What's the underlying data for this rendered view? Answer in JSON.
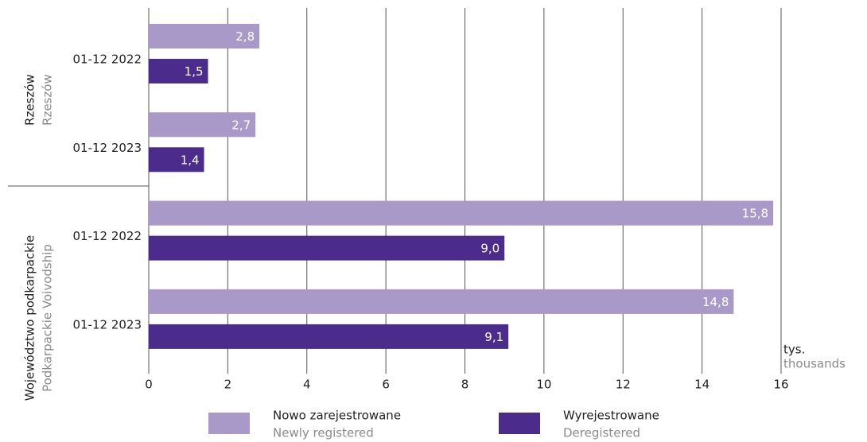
{
  "chart_data": {
    "type": "bar",
    "orientation": "horizontal",
    "groups": [
      {
        "label": "Rzeszów",
        "label_en": "Rzeszów"
      },
      {
        "label": "Województwo podkarpackie",
        "label_en": "Podkarpackie Voivodship"
      }
    ],
    "categories": [
      "01-12 2022",
      "01-12 2023",
      "01-12 2022",
      "01-12 2023"
    ],
    "series": [
      {
        "name": "Nowo zarejestrowane",
        "name_en": "Newly registered",
        "color": "#a899c8",
        "values": [
          2.8,
          2.7,
          15.8,
          14.8
        ],
        "value_labels": [
          "2,8",
          "2,7",
          "15,8",
          "14,8"
        ]
      },
      {
        "name": "Wyrejestrowane",
        "name_en": "Deregistered",
        "color": "#4b2c8c",
        "values": [
          1.5,
          1.4,
          9.0,
          9.1
        ],
        "value_labels": [
          "1,5",
          "1,4",
          "9,0",
          "9,1"
        ]
      }
    ],
    "x_unit": "tys.",
    "x_unit_en": "thousands",
    "xlim": [
      0,
      16
    ],
    "xticks": [
      0,
      2,
      4,
      6,
      8,
      10,
      12,
      14,
      16
    ],
    "grid": true
  }
}
